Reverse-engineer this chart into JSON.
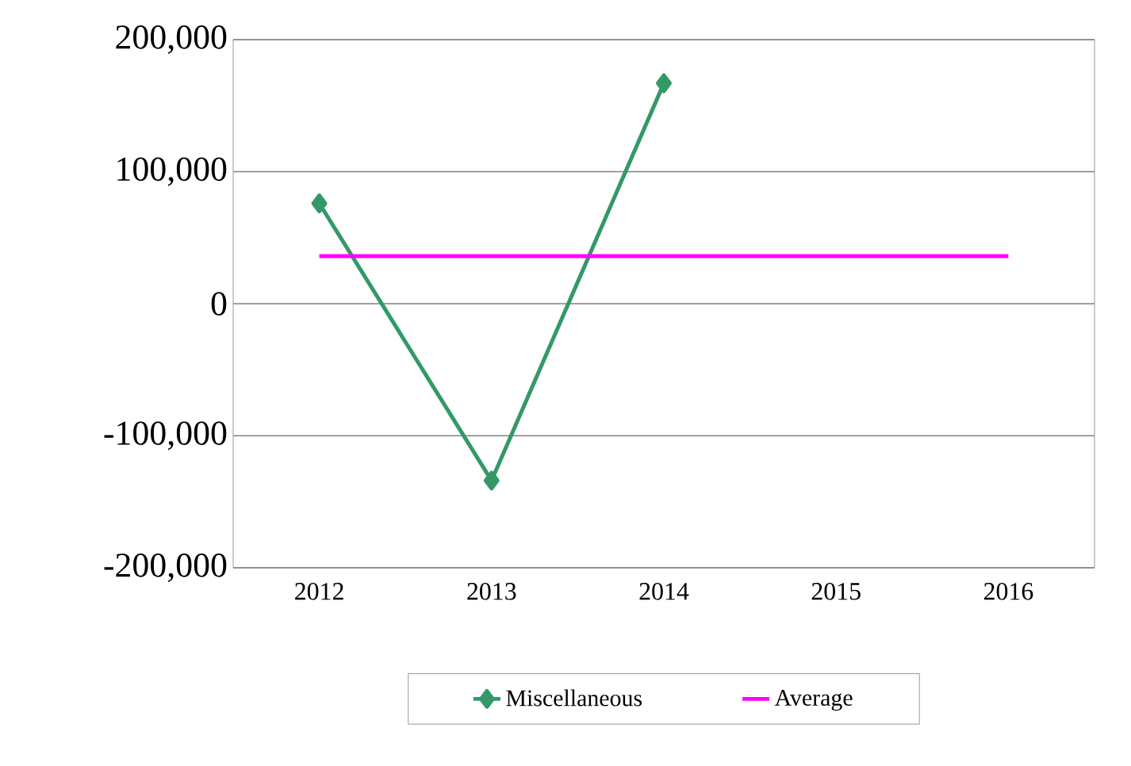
{
  "chart_data": {
    "type": "line",
    "categories": [
      "2012",
      "2013",
      "2014",
      "2015",
      "2016"
    ],
    "series": [
      {
        "name": "Miscellaneous",
        "color": "#339966",
        "marker": "diamond",
        "values": [
          76000,
          -134000,
          167000,
          null,
          null
        ]
      },
      {
        "name": "Average",
        "color": "#ff00ff",
        "marker": "none",
        "values": [
          36000,
          36000,
          36000,
          36000,
          36000
        ]
      }
    ],
    "ylim": [
      -200000,
      200000
    ],
    "yticks": [
      {
        "value": -200000,
        "label": "-200,000"
      },
      {
        "value": -100000,
        "label": "-100,000"
      },
      {
        "value": 0,
        "label": "0"
      },
      {
        "value": 100000,
        "label": "100,000"
      },
      {
        "value": 200000,
        "label": "200,000"
      }
    ],
    "grid": "y",
    "legend": "bottom"
  }
}
